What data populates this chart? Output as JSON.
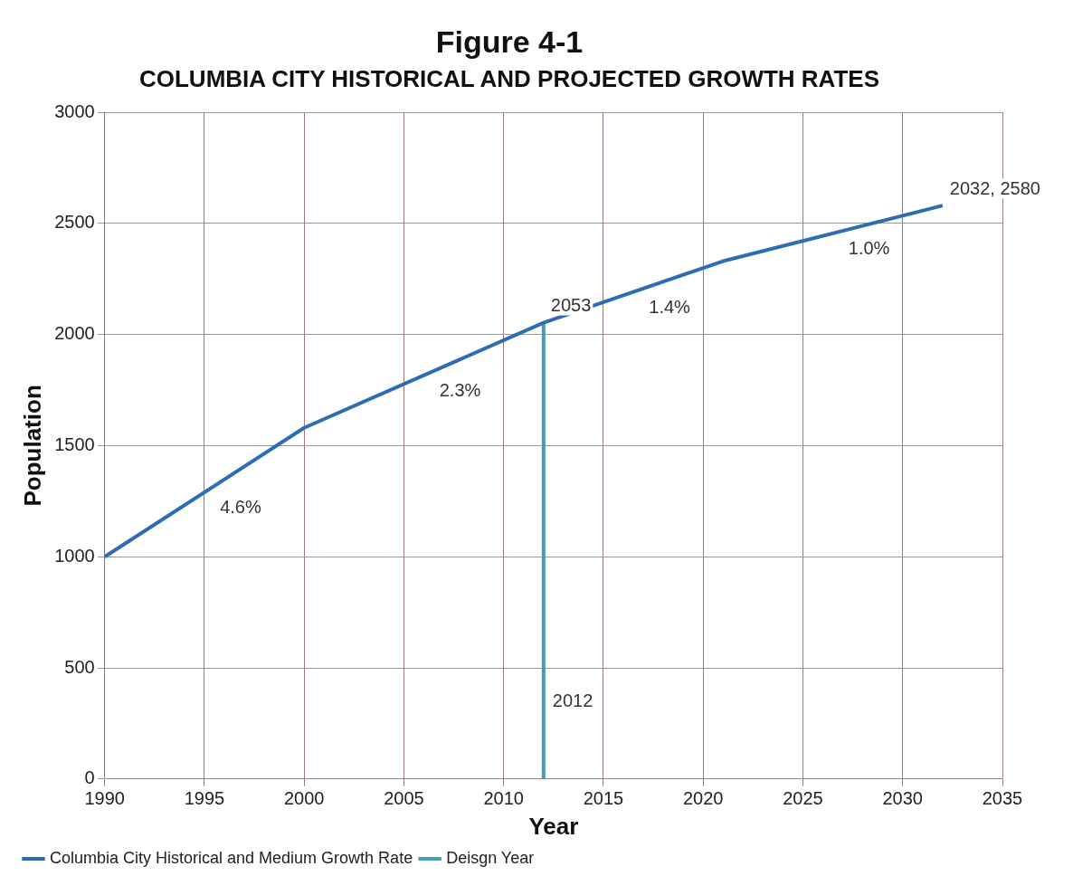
{
  "chart_data": {
    "type": "line",
    "title": "Figure 4-1",
    "subtitle": "COLUMBIA CITY HISTORICAL AND PROJECTED GROWTH RATES",
    "xlabel": "Year",
    "ylabel": "Population",
    "xlim": [
      1990,
      2035
    ],
    "xticks": [
      1990,
      1995,
      2000,
      2005,
      2010,
      2015,
      2020,
      2025,
      2030,
      2035
    ],
    "ylim": [
      0,
      3000
    ],
    "yticks": [
      0,
      500,
      1000,
      1500,
      2000,
      2500,
      3000
    ],
    "series": [
      {
        "name": "Columbia City Historical and Medium Growth Rate",
        "color": "#2e6db4",
        "x": [
          1990,
          2000,
          2012,
          2021,
          2032
        ],
        "values": [
          1000,
          1580,
          2053,
          2330,
          2580
        ],
        "value_labels": [
          null,
          null,
          "2053",
          null,
          "2032, 2580"
        ]
      },
      {
        "name": "Deisgn Year",
        "color": "#4a9bb4",
        "x": [
          2012,
          2012
        ],
        "values": [
          0,
          2053
        ]
      }
    ],
    "annotations": [
      "4.6%",
      "2.3%",
      "1.4%",
      "1.0%",
      "2012"
    ],
    "grid": true,
    "legend": "bottom",
    "marker": "none",
    "line_style": "solid"
  }
}
